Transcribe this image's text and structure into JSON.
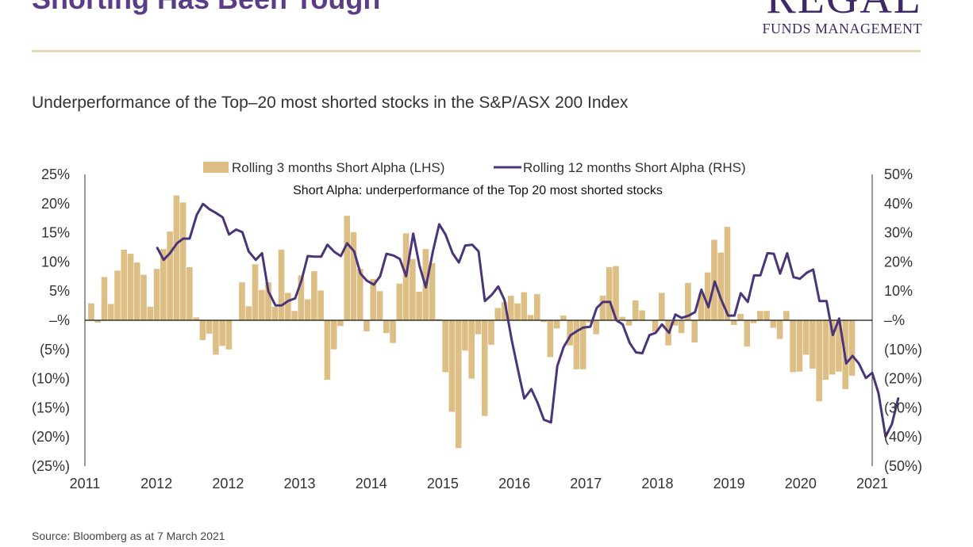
{
  "header": {
    "title": "Shorting Has Been Tough",
    "logo_main": "REGAL",
    "logo_sub": "FUNDS MANAGEMENT",
    "subtitle": "Underperformance of the Top–20 most shorted stocks in the S&P/ASX 200 Index"
  },
  "footer": {
    "source": "Source: Bloomberg as at 7 March 2021"
  },
  "colors": {
    "bars": "#ddbf86",
    "line": "#4b3579",
    "title": "#5a3d86",
    "rule": "#e6d6b5"
  },
  "chart_data": {
    "type": "bar+line",
    "annotation": "Short Alpha: underperformance of the Top 20 most shorted stocks",
    "legend": {
      "position": "top-center",
      "entries": [
        "Rolling 3 months Short Alpha (LHS)",
        "Rolling 12 months Short Alpha (RHS)"
      ]
    },
    "x_tick_labels": [
      "2011",
      "2012",
      "2012",
      "2013",
      "2014",
      "2015",
      "2016",
      "2017",
      "2018",
      "2019",
      "2020",
      "2021"
    ],
    "x_range": [
      2011.0,
      2021.0
    ],
    "y_left": {
      "range": [
        -25,
        25
      ],
      "tick_values": [
        25,
        20,
        15,
        10,
        5,
        0,
        -5,
        -10,
        -15,
        -20,
        -25
      ],
      "tick_labels": [
        "25%",
        "20%",
        "15%",
        "10%",
        "5%",
        "–%",
        "(5%)",
        "(10%)",
        "(15%)",
        "(20%)",
        "(25%)"
      ]
    },
    "y_right": {
      "range": [
        -50,
        50
      ],
      "tick_values": [
        50,
        40,
        30,
        20,
        10,
        0,
        -10,
        -20,
        -30,
        -40,
        -50
      ],
      "tick_labels": [
        "50%",
        "40%",
        "30%",
        "20%",
        "10%",
        "–%",
        "(10%)",
        "(20%)",
        "(30%)",
        "(40%)",
        "(50%)"
      ]
    },
    "grid": false,
    "series": [
      {
        "name": "Rolling 3 months Short Alpha (LHS)",
        "type": "bar",
        "axis": "left",
        "x_start": 2011.08,
        "x_step": 0.0833,
        "values": [
          2.9,
          -0.4,
          7.4,
          2.8,
          8.5,
          12.1,
          11.4,
          9.9,
          7.8,
          2.3,
          8.8,
          12.2,
          15.2,
          21.4,
          20.2,
          9.1,
          0.5,
          -3.4,
          -2.3,
          -5.9,
          -4.4,
          -5.0,
          0.0,
          6.5,
          2.4,
          9.6,
          5.2,
          6.5,
          2.3,
          12.1,
          4.7,
          1.6,
          7.7,
          3.6,
          8.4,
          5.1,
          -10.2,
          -5.0,
          -1.0,
          17.9,
          15.1,
          8.8,
          -1.9,
          7.1,
          5.0,
          -2.2,
          -3.9,
          6.3,
          14.9,
          10.5,
          4.9,
          12.2,
          9.8,
          0.2,
          -8.9,
          -15.7,
          -21.9,
          -5.2,
          -10.0,
          -2.4,
          -16.4,
          -4.2,
          2.1,
          3.1,
          4.2,
          2.9,
          4.8,
          0.9,
          4.5,
          -0.3,
          -6.3,
          -1.4,
          0.8,
          -4.3,
          -8.4,
          -8.4,
          -0.4,
          -2.4,
          4.2,
          9.1,
          9.3,
          0.6,
          -0.9,
          3.4,
          1.7,
          0.0,
          -1.9,
          4.7,
          -4.3,
          -0.9,
          -2.2,
          6.4,
          -3.8,
          4.5,
          8.2,
          13.8,
          11.6,
          16.0,
          -0.8,
          1.1,
          -4.5,
          -0.5,
          1.6,
          1.6,
          -1.3,
          -3.2,
          1.6,
          -8.9,
          -8.8,
          -5.9,
          -8.3,
          -13.9,
          -10.2,
          -9.3,
          -8.8,
          -11.8,
          -9.5
        ]
      },
      {
        "name": "Rolling 12 months Short Alpha (RHS)",
        "type": "line",
        "axis": "right",
        "points": [
          [
            2011.92,
            24.8
          ],
          [
            2012.0,
            20.7
          ],
          [
            2012.08,
            23.0
          ],
          [
            2012.17,
            26.4
          ],
          [
            2012.25,
            28.0
          ],
          [
            2012.33,
            28.0
          ],
          [
            2012.42,
            36.1
          ],
          [
            2012.5,
            39.9
          ],
          [
            2012.58,
            38.1
          ],
          [
            2012.67,
            36.7
          ],
          [
            2012.75,
            35.3
          ],
          [
            2012.83,
            29.4
          ],
          [
            2012.92,
            31.1
          ],
          [
            2013.0,
            30.2
          ],
          [
            2013.08,
            23.6
          ],
          [
            2013.17,
            20.7
          ],
          [
            2013.25,
            23.0
          ],
          [
            2013.33,
            9.9
          ],
          [
            2013.42,
            5.1
          ],
          [
            2013.5,
            5.1
          ],
          [
            2013.58,
            6.6
          ],
          [
            2013.67,
            7.5
          ],
          [
            2013.75,
            13.6
          ],
          [
            2013.83,
            22.0
          ],
          [
            2013.92,
            21.8
          ],
          [
            2014.0,
            21.8
          ],
          [
            2014.08,
            25.9
          ],
          [
            2014.17,
            23.4
          ],
          [
            2014.25,
            22.0
          ],
          [
            2014.33,
            26.4
          ],
          [
            2014.42,
            23.6
          ],
          [
            2014.5,
            16.0
          ],
          [
            2014.58,
            13.6
          ],
          [
            2014.67,
            12.2
          ],
          [
            2014.75,
            15.1
          ],
          [
            2014.83,
            22.8
          ],
          [
            2014.92,
            22.2
          ],
          [
            2015.0,
            21.0
          ],
          [
            2015.08,
            15.1
          ],
          [
            2015.17,
            29.7
          ],
          [
            2015.25,
            18.7
          ],
          [
            2015.33,
            11.3
          ],
          [
            2015.42,
            23.6
          ],
          [
            2015.5,
            32.9
          ],
          [
            2015.58,
            29.4
          ],
          [
            2015.67,
            23.0
          ],
          [
            2015.75,
            19.8
          ],
          [
            2015.83,
            25.6
          ],
          [
            2015.92,
            25.9
          ],
          [
            2016.0,
            23.6
          ],
          [
            2016.08,
            6.6
          ],
          [
            2016.17,
            8.8
          ],
          [
            2016.25,
            11.6
          ],
          [
            2016.33,
            6.9
          ],
          [
            2016.42,
            -6.6
          ],
          [
            2016.5,
            -16.9
          ],
          [
            2016.58,
            -26.8
          ],
          [
            2016.67,
            -23.6
          ],
          [
            2016.75,
            -28.3
          ],
          [
            2016.83,
            -34.1
          ],
          [
            2016.92,
            -35.0
          ],
          [
            2017.0,
            -15.7
          ],
          [
            2017.08,
            -9.2
          ],
          [
            2017.17,
            -5.1
          ],
          [
            2017.25,
            -3.7
          ],
          [
            2017.33,
            -2.5
          ],
          [
            2017.42,
            -2.2
          ],
          [
            2017.5,
            4.2
          ],
          [
            2017.58,
            6.3
          ],
          [
            2017.67,
            6.3
          ],
          [
            2017.75,
            0.0
          ],
          [
            2017.83,
            -1.4
          ],
          [
            2017.92,
            -7.8
          ],
          [
            2018.0,
            -11.0
          ],
          [
            2018.08,
            -11.3
          ],
          [
            2018.17,
            -5.1
          ],
          [
            2018.25,
            -4.3
          ],
          [
            2018.33,
            -1.4
          ],
          [
            2018.42,
            -4.3
          ],
          [
            2018.5,
            2.0
          ],
          [
            2018.58,
            0.8
          ],
          [
            2018.67,
            1.6
          ],
          [
            2018.75,
            2.8
          ],
          [
            2018.83,
            10.5
          ],
          [
            2018.92,
            4.5
          ],
          [
            2019.0,
            13.3
          ],
          [
            2019.08,
            7.2
          ],
          [
            2019.17,
            1.6
          ],
          [
            2019.25,
            1.6
          ],
          [
            2019.33,
            9.3
          ],
          [
            2019.42,
            6.3
          ],
          [
            2019.5,
            15.4
          ],
          [
            2019.58,
            15.4
          ],
          [
            2019.67,
            23.0
          ],
          [
            2019.75,
            22.8
          ],
          [
            2019.83,
            16.0
          ],
          [
            2019.92,
            23.0
          ],
          [
            2020.0,
            14.8
          ],
          [
            2020.08,
            14.2
          ],
          [
            2020.17,
            16.3
          ],
          [
            2020.25,
            17.4
          ],
          [
            2020.33,
            6.6
          ],
          [
            2020.42,
            6.6
          ],
          [
            2020.5,
            -5.1
          ],
          [
            2020.58,
            0.6
          ],
          [
            2020.67,
            -14.8
          ],
          [
            2020.75,
            -12.2
          ],
          [
            2020.83,
            -14.8
          ],
          [
            2020.92,
            -19.8
          ],
          [
            2021.0,
            -18.0
          ],
          [
            2021.08,
            -25.0
          ],
          [
            2021.17,
            -39.9
          ],
          [
            2021.25,
            -35.6
          ],
          [
            2021.33,
            -26.8
          ]
        ]
      }
    ]
  }
}
